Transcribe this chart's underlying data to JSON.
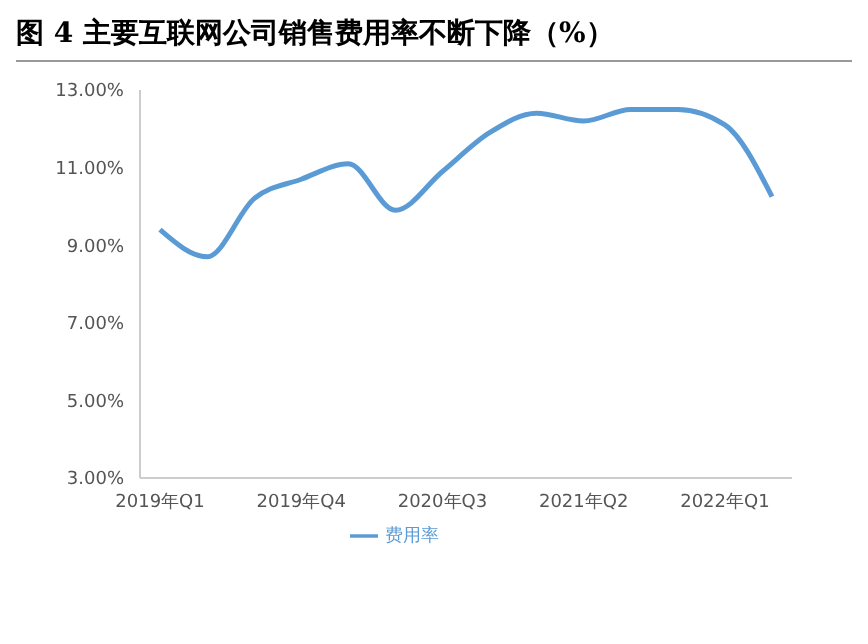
{
  "chart_data": {
    "type": "line",
    "title": "图 4 主要互联网公司销售费用率不断下降（%）",
    "categories": [
      "2019年Q1",
      null,
      null,
      "2019年Q4",
      null,
      null,
      "2020年Q3",
      null,
      null,
      "2021年Q2",
      null,
      null,
      "2022年Q1",
      null
    ],
    "series": [
      {
        "name": "费用率",
        "color": "#5b9bd5",
        "values": [
          9.4,
          8.7,
          10.2,
          10.7,
          11.1,
          9.9,
          10.9,
          11.9,
          12.4,
          12.2,
          12.5,
          12.5,
          12.1,
          10.25
        ]
      }
    ],
    "ylim": [
      3,
      13
    ],
    "yticks": [
      {
        "value": 3,
        "label": "3.00%"
      },
      {
        "value": 5,
        "label": "5.00%"
      },
      {
        "value": 7,
        "label": "7.00%"
      },
      {
        "value": 9,
        "label": "9.00%"
      },
      {
        "value": 11,
        "label": "11.00%"
      },
      {
        "value": 13,
        "label": "13.00%"
      }
    ],
    "grid": false,
    "legend": "bottom",
    "marker": "none",
    "line_style": "solid"
  }
}
